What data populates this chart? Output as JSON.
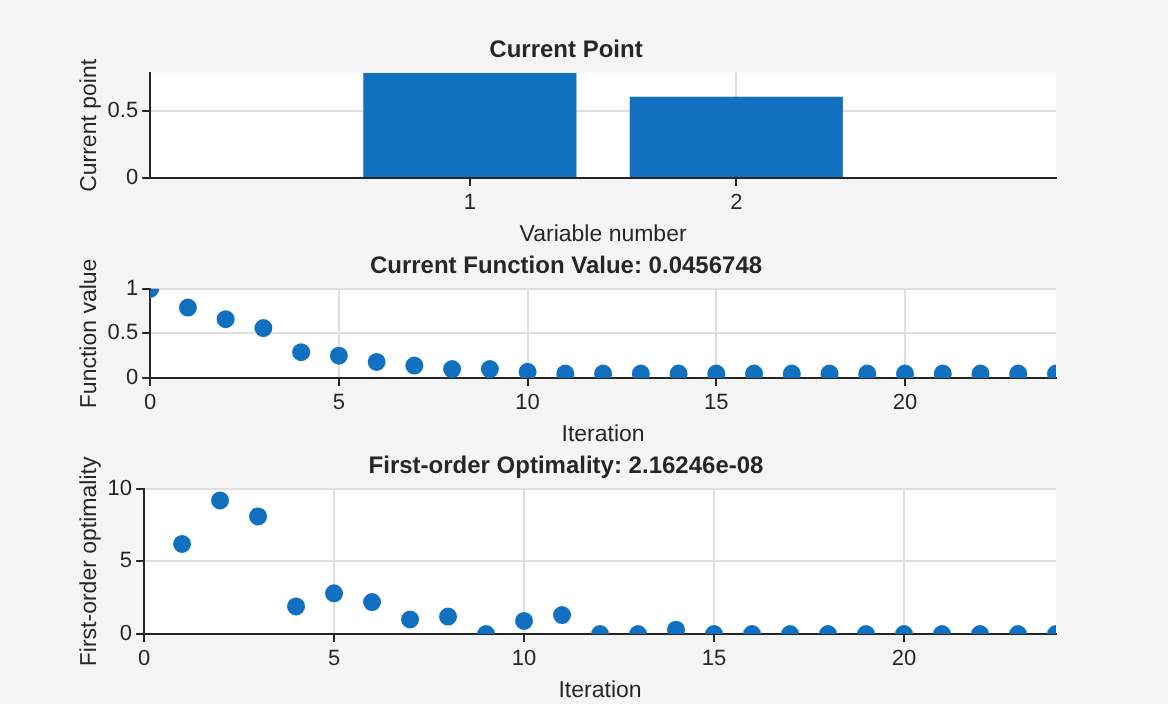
{
  "chart_data": [
    {
      "type": "bar",
      "title": "Current Point",
      "xlabel": "Variable number",
      "ylabel": "Current point",
      "x": [
        1,
        2
      ],
      "values": [
        0.79,
        0.61
      ],
      "color": "#1170c0",
      "xlim": [
        -0.2,
        3.2
      ],
      "xticks": [
        1,
        2
      ],
      "ylim": [
        0,
        0.79
      ],
      "yticks": [
        0,
        0.5
      ],
      "grid": true
    },
    {
      "type": "scatter",
      "title": "Current Function Value: 0.0456748",
      "xlabel": "Iteration",
      "ylabel": "Function value",
      "x": [
        0,
        1,
        2,
        3,
        4,
        5,
        6,
        7,
        8,
        9,
        10,
        11,
        12,
        13,
        14,
        15,
        16,
        17,
        18,
        19,
        20,
        21,
        22,
        23,
        24
      ],
      "values": [
        1.0,
        0.79,
        0.66,
        0.56,
        0.29,
        0.25,
        0.18,
        0.14,
        0.1,
        0.1,
        0.07,
        0.05,
        0.05,
        0.05,
        0.05,
        0.05,
        0.05,
        0.05,
        0.05,
        0.05,
        0.05,
        0.05,
        0.05,
        0.05,
        0.05
      ],
      "color": "#1170c0",
      "marker": "circle",
      "xlim": [
        0,
        24
      ],
      "xticks": [
        0,
        5,
        10,
        15,
        20
      ],
      "ylim": [
        0,
        1
      ],
      "yticks": [
        0,
        0.5,
        1
      ],
      "grid": true
    },
    {
      "type": "scatter",
      "title": "First-order Optimality: 2.16246e-08",
      "xlabel": "Iteration",
      "ylabel": "First-order optimality",
      "x": [
        1,
        2,
        3,
        4,
        5,
        6,
        7,
        8,
        9,
        10,
        11,
        12,
        13,
        14,
        15,
        16,
        17,
        18,
        19,
        20,
        21,
        22,
        23,
        24
      ],
      "values": [
        6.2,
        9.2,
        8.1,
        1.9,
        2.8,
        2.2,
        1.0,
        1.2,
        0,
        0.9,
        1.3,
        0,
        0,
        0.3,
        0,
        0,
        0,
        0,
        0,
        0,
        0,
        0,
        0,
        0
      ],
      "color": "#1170c0",
      "marker": "circle",
      "xlim": [
        0,
        24
      ],
      "xticks": [
        0,
        5,
        10,
        15,
        20
      ],
      "ylim": [
        0,
        10
      ],
      "yticks": [
        0,
        5,
        10
      ],
      "grid": true
    }
  ]
}
